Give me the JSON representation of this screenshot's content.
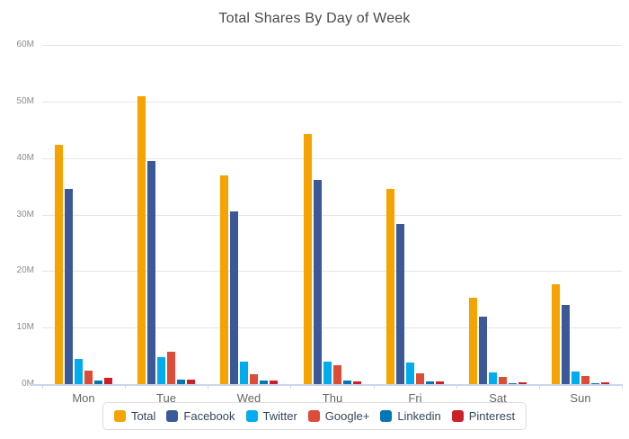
{
  "chart_data": {
    "type": "bar",
    "title": "Total Shares By Day of Week",
    "categories": [
      "Mon",
      "Tue",
      "Wed",
      "Thu",
      "Fri",
      "Sat",
      "Sun"
    ],
    "series": [
      {
        "name": "Total",
        "color": "#f5a300",
        "values": [
          42.3,
          51.0,
          36.9,
          44.3,
          34.6,
          15.2,
          17.7
        ]
      },
      {
        "name": "Facebook",
        "color": "#3b5998",
        "values": [
          34.5,
          39.5,
          30.5,
          36.1,
          28.4,
          11.9,
          14.0
        ]
      },
      {
        "name": "Twitter",
        "color": "#00aced",
        "values": [
          4.4,
          4.8,
          4.0,
          4.0,
          3.8,
          2.0,
          2.2
        ]
      },
      {
        "name": "Google+",
        "color": "#dd4b39",
        "values": [
          2.4,
          5.8,
          1.8,
          3.3,
          1.9,
          1.3,
          1.4
        ]
      },
      {
        "name": "Linkedin",
        "color": "#0077b5",
        "values": [
          0.7,
          0.8,
          0.7,
          0.6,
          0.4,
          0.1,
          0.1
        ]
      },
      {
        "name": "Pinterest",
        "color": "#cb2027",
        "values": [
          1.1,
          0.8,
          0.6,
          0.5,
          0.5,
          0.3,
          0.3
        ]
      }
    ],
    "y_ticks": [
      "0M",
      "10M",
      "20M",
      "30M",
      "40M",
      "50M",
      "60M"
    ],
    "ylim": [
      0,
      60
    ],
    "xlabel": "",
    "ylabel": "",
    "grid": true,
    "legend_position": "bottom"
  },
  "colors": {
    "background": "#ffffff",
    "grid": "#e6e6e6",
    "axis_line": "#ccd6eb",
    "title_text": "#4a4a4a",
    "x_label": "#666666",
    "y_label": "#8c8c8c",
    "legend_text": "#33475b",
    "legend_border": "#d9dde3"
  }
}
